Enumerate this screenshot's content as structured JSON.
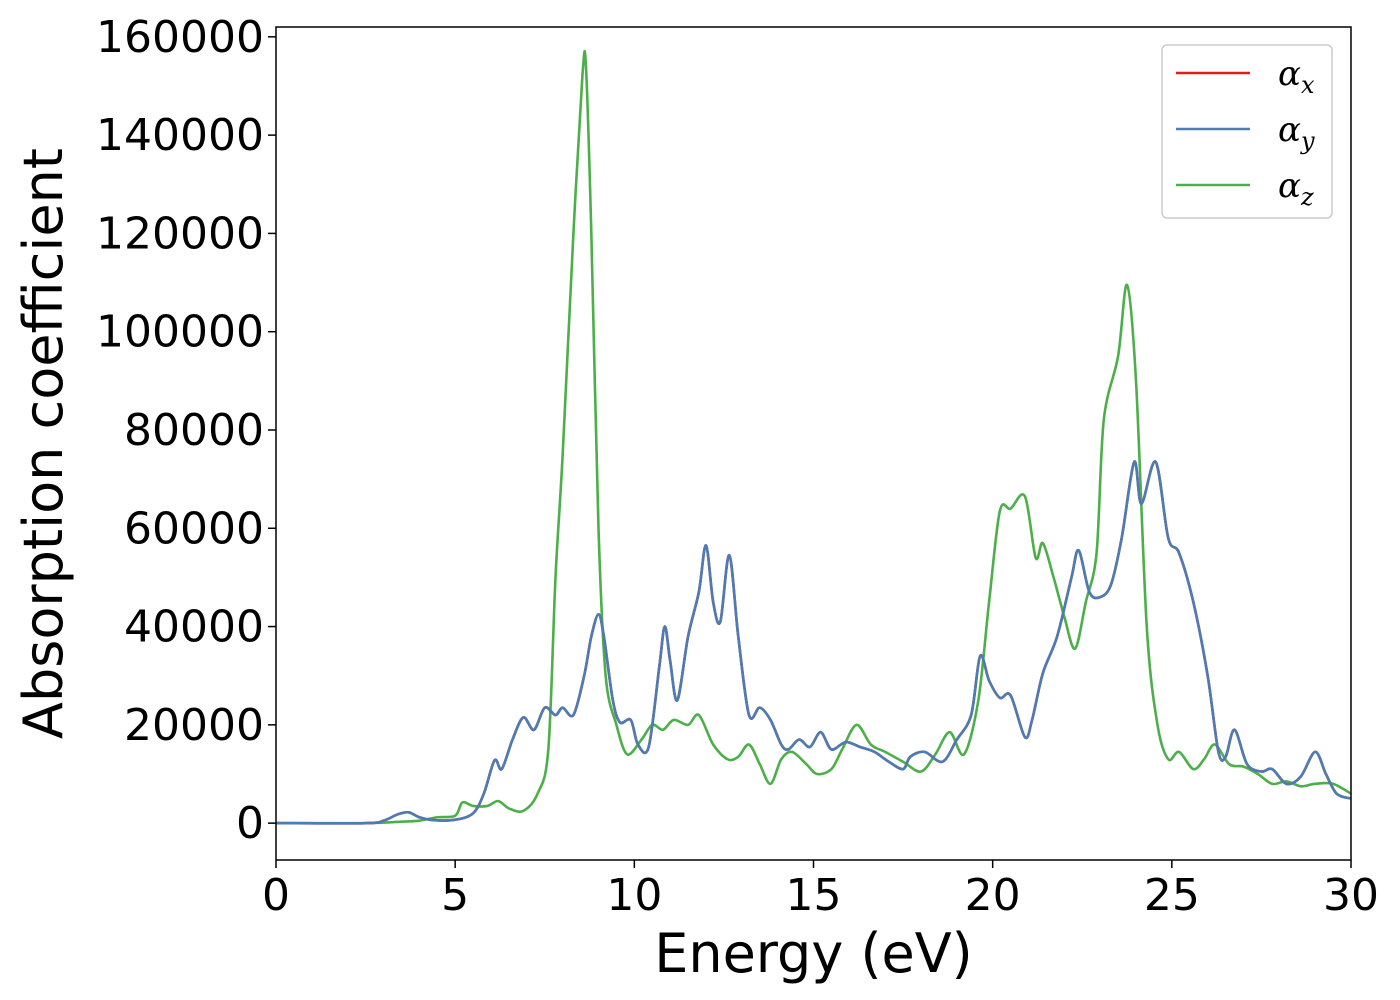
{
  "chart_data": {
    "type": "line",
    "title": "",
    "xlabel": "Energy (eV)",
    "ylabel": "Absorption coefficient",
    "xlim": [
      0,
      30
    ],
    "ylim": [
      -7500,
      162000
    ],
    "xticks": [
      0,
      5,
      10,
      15,
      20,
      25,
      30
    ],
    "xtick_labels": [
      "0",
      "5",
      "10",
      "15",
      "20",
      "25",
      "30"
    ],
    "yticks": [
      0,
      20000,
      40000,
      60000,
      80000,
      100000,
      120000,
      140000,
      160000
    ],
    "ytick_labels": [
      "0",
      "20000",
      "40000",
      "60000",
      "80000",
      "100000",
      "120000",
      "140000",
      "160000"
    ],
    "grid": false,
    "legend_position": "top-right",
    "series": [
      {
        "name": "α_x",
        "legend_base": "α",
        "legend_sub": "x",
        "color": "#e41a1c",
        "x": [
          0,
          2.5,
          3.0,
          3.4,
          3.7,
          4.0,
          4.4,
          5.0,
          5.5,
          5.8,
          6.1,
          6.3,
          6.6,
          6.9,
          7.2,
          7.5,
          7.8,
          8.0,
          8.3,
          8.6,
          8.8,
          9.0,
          9.15,
          9.4,
          9.6,
          9.9,
          10.1,
          10.4,
          10.7,
          10.85,
          11.0,
          11.2,
          11.5,
          11.8,
          12.0,
          12.2,
          12.4,
          12.65,
          12.9,
          13.2,
          13.5,
          13.8,
          14.1,
          14.3,
          14.6,
          14.9,
          15.2,
          15.5,
          15.9,
          16.3,
          16.7,
          17.1,
          17.5,
          17.7,
          18.1,
          18.6,
          19.0,
          19.4,
          19.65,
          19.9,
          20.2,
          20.5,
          20.9,
          21.1,
          21.4,
          21.8,
          22.2,
          22.4,
          22.7,
          23.0,
          23.3,
          23.6,
          23.95,
          24.15,
          24.55,
          24.9,
          25.2,
          25.6,
          26.0,
          26.3,
          26.5,
          26.75,
          27.1,
          27.5,
          27.8,
          28.2,
          28.6,
          29.0,
          29.3,
          29.6,
          30.0
        ],
        "y": [
          0,
          0,
          500,
          1800,
          2200,
          1200,
          600,
          700,
          2000,
          6000,
          12800,
          11000,
          17000,
          21500,
          19000,
          23500,
          22000,
          23500,
          22000,
          30000,
          38000,
          42500,
          38000,
          25000,
          20500,
          21000,
          16000,
          15500,
          32000,
          40000,
          33000,
          25000,
          38000,
          47000,
          56500,
          45000,
          41000,
          54500,
          38000,
          22000,
          23500,
          21000,
          16000,
          15000,
          17000,
          15500,
          18500,
          15000,
          16500,
          15500,
          14500,
          12500,
          11000,
          13500,
          14500,
          12500,
          17000,
          22000,
          34000,
          29000,
          25500,
          26000,
          17500,
          21000,
          30500,
          38000,
          50000,
          55500,
          47000,
          46000,
          48500,
          58000,
          73500,
          65000,
          73500,
          58000,
          55000,
          45000,
          30000,
          14500,
          13500,
          19000,
          12000,
          10500,
          11000,
          8000,
          9500,
          14500,
          10000,
          6000,
          5000
        ]
      },
      {
        "name": "α_y",
        "legend_base": "α",
        "legend_sub": "y",
        "color": "#4a7cb5",
        "x": [
          0,
          2.5,
          3.0,
          3.4,
          3.7,
          4.0,
          4.4,
          5.0,
          5.5,
          5.8,
          6.1,
          6.3,
          6.6,
          6.9,
          7.2,
          7.5,
          7.8,
          8.0,
          8.3,
          8.6,
          8.8,
          9.0,
          9.15,
          9.4,
          9.6,
          9.9,
          10.1,
          10.4,
          10.7,
          10.85,
          11.0,
          11.2,
          11.5,
          11.8,
          12.0,
          12.2,
          12.4,
          12.65,
          12.9,
          13.2,
          13.5,
          13.8,
          14.1,
          14.3,
          14.6,
          14.9,
          15.2,
          15.5,
          15.9,
          16.3,
          16.7,
          17.1,
          17.5,
          17.7,
          18.1,
          18.6,
          19.0,
          19.4,
          19.65,
          19.9,
          20.2,
          20.5,
          20.9,
          21.1,
          21.4,
          21.8,
          22.2,
          22.4,
          22.7,
          23.0,
          23.3,
          23.6,
          23.95,
          24.15,
          24.55,
          24.9,
          25.2,
          25.6,
          26.0,
          26.3,
          26.5,
          26.75,
          27.1,
          27.5,
          27.8,
          28.2,
          28.6,
          29.0,
          29.3,
          29.6,
          30.0
        ],
        "y": [
          0,
          0,
          500,
          1800,
          2200,
          1200,
          600,
          700,
          2000,
          6000,
          12800,
          11000,
          17000,
          21500,
          19000,
          23500,
          22000,
          23500,
          22000,
          30000,
          38000,
          42500,
          38000,
          25000,
          20500,
          21000,
          16000,
          15500,
          32000,
          40000,
          33000,
          25000,
          38000,
          47000,
          56500,
          45000,
          41000,
          54500,
          38000,
          22000,
          23500,
          21000,
          16000,
          15000,
          17000,
          15500,
          18500,
          15000,
          16500,
          15500,
          14500,
          12500,
          11000,
          13500,
          14500,
          12500,
          17000,
          22000,
          34000,
          29000,
          25500,
          26000,
          17500,
          21000,
          30500,
          38000,
          50000,
          55500,
          47000,
          46000,
          48500,
          58000,
          73500,
          65000,
          73500,
          58000,
          55000,
          45000,
          30000,
          14500,
          13500,
          19000,
          12000,
          10500,
          11000,
          8000,
          9500,
          14500,
          10000,
          6000,
          5000
        ]
      },
      {
        "name": "α_z",
        "legend_base": "α",
        "legend_sub": "z",
        "color": "#4daf4a",
        "x": [
          0,
          2.5,
          3.5,
          4.0,
          4.5,
          5.0,
          5.2,
          5.5,
          5.9,
          6.2,
          6.5,
          6.9,
          7.3,
          7.6,
          7.8,
          8.0,
          8.3,
          8.55,
          8.65,
          8.8,
          9.0,
          9.2,
          9.5,
          9.8,
          10.2,
          10.5,
          10.8,
          11.1,
          11.5,
          11.8,
          12.2,
          12.6,
          12.9,
          13.2,
          13.5,
          13.8,
          14.1,
          14.4,
          14.8,
          15.1,
          15.5,
          15.8,
          16.2,
          16.6,
          17.0,
          17.5,
          18.0,
          18.4,
          18.8,
          19.2,
          19.6,
          19.9,
          20.2,
          20.5,
          20.9,
          21.2,
          21.4,
          21.7,
          22.0,
          22.3,
          22.6,
          22.9,
          23.1,
          23.5,
          23.75,
          24.0,
          24.3,
          24.6,
          24.9,
          25.2,
          25.6,
          25.9,
          26.2,
          26.6,
          27.0,
          27.4,
          27.8,
          28.2,
          28.6,
          29.0,
          29.5,
          30.0
        ],
        "y": [
          0,
          0,
          300,
          500,
          1200,
          1500,
          4200,
          3500,
          3500,
          4500,
          3000,
          2500,
          6000,
          15000,
          50000,
          75000,
          120000,
          152000,
          154000,
          120000,
          60000,
          30000,
          20000,
          14000,
          17000,
          20000,
          19000,
          21000,
          20000,
          22000,
          16000,
          13000,
          13500,
          16000,
          12000,
          8000,
          13000,
          14500,
          12000,
          10000,
          11000,
          15000,
          20000,
          16000,
          14500,
          12500,
          10500,
          14000,
          18500,
          14000,
          25000,
          45000,
          63500,
          64000,
          66500,
          54000,
          57000,
          50000,
          42000,
          35500,
          45000,
          55000,
          82000,
          95000,
          109500,
          90000,
          40000,
          20000,
          13000,
          14500,
          11000,
          13000,
          16000,
          12000,
          11500,
          10000,
          8000,
          8500,
          7500,
          8000,
          8000,
          6000
        ]
      }
    ]
  }
}
